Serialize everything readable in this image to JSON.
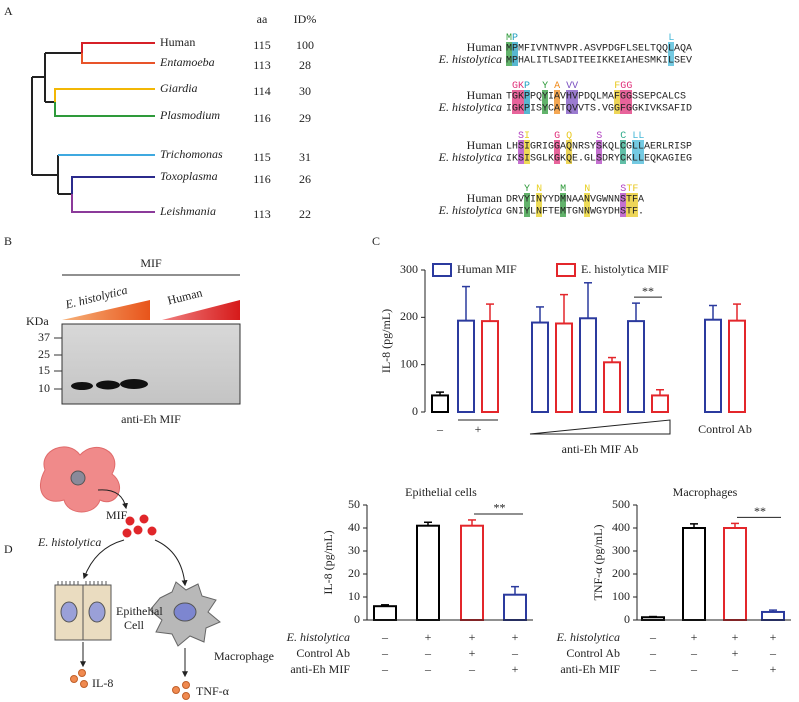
{
  "panel_labels": [
    "A",
    "B",
    "C",
    "D"
  ],
  "tree": {
    "header": [
      "aa",
      "ID%"
    ],
    "taxa": [
      {
        "name": "Human",
        "color": "#d62027",
        "aa": "115",
        "id": "100"
      },
      {
        "name": "Entamoeba",
        "color": "#e8542a",
        "aa": "113",
        "id": "28"
      },
      {
        "name": "Giardia",
        "color": "#f2b705",
        "aa": "114",
        "id": "30"
      },
      {
        "name": "Plasmodium",
        "color": "#2e9a3a",
        "aa": "116",
        "id": "29"
      },
      {
        "name": "Trichomonas",
        "color": "#3fa9e0",
        "aa": "115",
        "id": "31"
      },
      {
        "name": "Toxoplasma",
        "color": "#2b2a8c",
        "aa": "116",
        "id": "26"
      },
      {
        "name": "Leishmania",
        "color": "#8b3a9a",
        "aa": "113",
        "id": "22"
      }
    ]
  },
  "alignment": {
    "labels": [
      "Human",
      "E. histolytica"
    ],
    "blocks": [
      {
        "consensus": "MP                         L",
        "human": "MPMFIVNTNVPR.ASVPDGFLSELTQQLAQA",
        "eh": "MPHALITLSADITEEIKKEIAHESMKILSEV"
      },
      {
        "consensus": " GKP  Y A VV      FGG",
        "human": "TGKPPQYIAVHVPDQLMAFGGSSEPCALCS",
        "eh": "IGKPISYCATQVVTS.VGGFGGKIVKSAFID"
      },
      {
        "consensus": "  SI    G Q    S   C LL",
        "human": "LHSIGRIGGAQNRSYSKQLCGLLAERLRISP",
        "eh": "IKSISGLKGKQE.GLSDRYCKLLEQKAGIEG"
      },
      {
        "consensus": "   Y N   M   N     STF",
        "human": "DRVYINYYDMNAANVGWNNSTFA",
        "eh": "GNIYLNFTEMTGNNWGYDHSTF."
      }
    ]
  },
  "blot": {
    "title": "MIF",
    "lanes": [
      "E. histolytica",
      "Human"
    ],
    "unit": "KDa",
    "markers": [
      "37",
      "25",
      "15",
      "10"
    ],
    "antibody": "anti-Eh MIF"
  },
  "diagram": {
    "organism": "E. histolytica",
    "secreted": "MIF",
    "epithelial_cell": [
      "Epithelial",
      "Cell"
    ],
    "epithelial_output": "IL-8",
    "macrophage": "Macrophage",
    "macrophage_output": "TNF-α"
  },
  "chart_data": [
    {
      "type": "bar",
      "y_label": "IL-8 (pg/mL)",
      "ylim": [
        0,
        300
      ],
      "yticks": [
        0,
        100,
        200,
        300
      ],
      "categories": [
        "–",
        "+",
        null,
        null,
        null,
        "Control Ab"
      ],
      "group_label": "anti-Eh MIF Ab",
      "series": [
        {
          "color": "#000000",
          "values": [
            35,
            null,
            null,
            null,
            null,
            null
          ],
          "errors": [
            7,
            null,
            null,
            null,
            null,
            null
          ]
        },
        {
          "name": "Human MIF",
          "color": "#2b3a9e",
          "values": [
            null,
            193,
            189,
            198,
            192,
            195
          ],
          "errors": [
            null,
            72,
            33,
            75,
            38,
            30
          ]
        },
        {
          "name": "E. histolytica MIF",
          "color": "#e3262b",
          "values": [
            null,
            192,
            187,
            105,
            35,
            193
          ],
          "errors": [
            null,
            36,
            61,
            10,
            12,
            35
          ]
        }
      ],
      "significance": "**"
    },
    {
      "type": "bar",
      "title": "Epithelial cells",
      "y_label": "IL-8 (pg/mL)",
      "ylim": [
        0,
        50
      ],
      "yticks": [
        0,
        10,
        20,
        30,
        40,
        50
      ],
      "values": [
        6,
        41,
        41,
        11
      ],
      "errors": [
        0.6,
        1.5,
        2.5,
        3.5
      ],
      "colors": [
        "#000000",
        "#000000",
        "#e3262b",
        "#2b3a9e"
      ],
      "significance": "**",
      "conditions": [
        {
          "label": "E. histolytica",
          "marks": [
            "–",
            "+",
            "+",
            "+"
          ]
        },
        {
          "label": "Control Ab",
          "marks": [
            "–",
            "–",
            "+",
            "–"
          ]
        },
        {
          "label": "anti-Eh MIF",
          "marks": [
            "–",
            "–",
            "–",
            "+"
          ]
        }
      ]
    },
    {
      "type": "bar",
      "title": "Macrophages",
      "y_label": "TNF-α (pg/mL)",
      "ylim": [
        0,
        500
      ],
      "yticks": [
        0,
        100,
        200,
        300,
        400,
        500
      ],
      "values": [
        12,
        400,
        400,
        35
      ],
      "errors": [
        3,
        18,
        20,
        8
      ],
      "colors": [
        "#000000",
        "#000000",
        "#e3262b",
        "#2b3a9e"
      ],
      "significance": "**",
      "conditions": [
        {
          "label": "E. histolytica",
          "marks": [
            "–",
            "+",
            "+",
            "+"
          ]
        },
        {
          "label": "Control Ab",
          "marks": [
            "–",
            "–",
            "+",
            "–"
          ]
        },
        {
          "label": "anti-Eh MIF",
          "marks": [
            "–",
            "–",
            "–",
            "+"
          ]
        }
      ]
    }
  ]
}
